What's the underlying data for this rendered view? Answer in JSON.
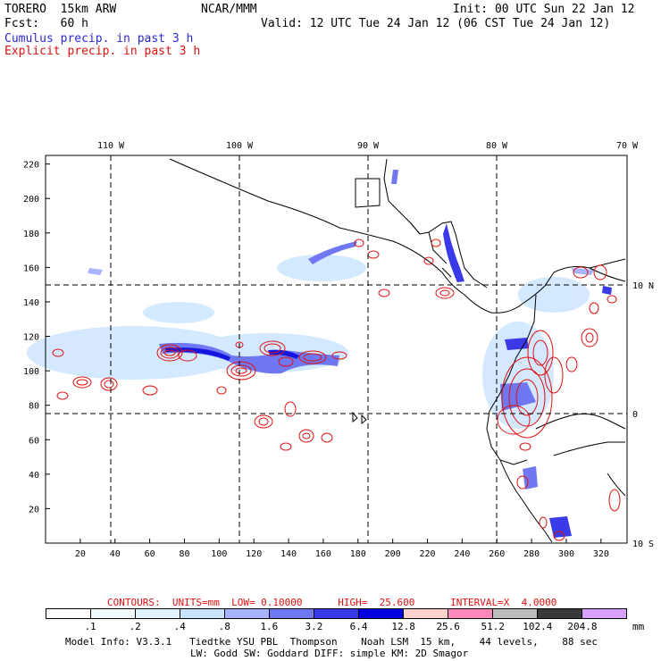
{
  "header": {
    "model": "TORERO  15km ARW",
    "org": "NCAR/MMM",
    "init": "Init: 00 UTC Sun 22 Jan 12",
    "fcst": "Fcst:   60 h",
    "valid": "Valid: 12 UTC Tue 24 Jan 12 (06 CST Tue 24 Jan 12)",
    "line_cumulus": "Cumulus precip. in past 3 h",
    "line_explicit": "Explicit precip. in past 3 h"
  },
  "map": {
    "lon_labels": [
      "110 W",
      "100 W",
      "90 W",
      "80 W",
      "70 W"
    ],
    "lat_labels": [
      "10 N",
      "0",
      "10 S"
    ],
    "x_ticks": [
      "20",
      "40",
      "60",
      "80",
      "100",
      "120",
      "140",
      "160",
      "180",
      "200",
      "220",
      "240",
      "260",
      "280",
      "300",
      "320"
    ],
    "y_ticks": [
      "220",
      "200",
      "180",
      "160",
      "140",
      "120",
      "100",
      "80",
      "60",
      "40",
      "20"
    ],
    "colors": {
      "coast": "#000000",
      "cumulus_light": "#cfe7ff",
      "cumulus_mid": "#7a82f0",
      "cumulus_dark": "#1515e0",
      "contour": "#e01010"
    }
  },
  "legend": {
    "contour_info": "CONTOURS:  UNITS=mm  LOW= 0.10000      HIGH=  25.600      INTERVAL=X  4.0000",
    "colors": [
      "#ffffff",
      "#f2fbff",
      "#e0f4ff",
      "#c8e4ff",
      "#a8b4ff",
      "#6f78f2",
      "#3a3ae8",
      "#0000e0",
      "#ffd0d0",
      "#ff88bb",
      "#bdbdbd",
      "#3a3a3a",
      "#d8a0ff"
    ],
    "labels": [
      ".1",
      ".2",
      ".4",
      ".8",
      "1.6",
      "3.2",
      "6.4",
      "12.8",
      "25.6",
      "51.2",
      "102.4",
      "204.8"
    ],
    "unit": "mm"
  },
  "footer": {
    "line1": "Model Info: V3.3.1   Tiedtke YSU PBL  Thompson    Noah LSM  15 km,    44 levels,    88 sec",
    "line2": "LW: Godd SW: Goddard DIFF: simple KM: 2D Smagor"
  }
}
